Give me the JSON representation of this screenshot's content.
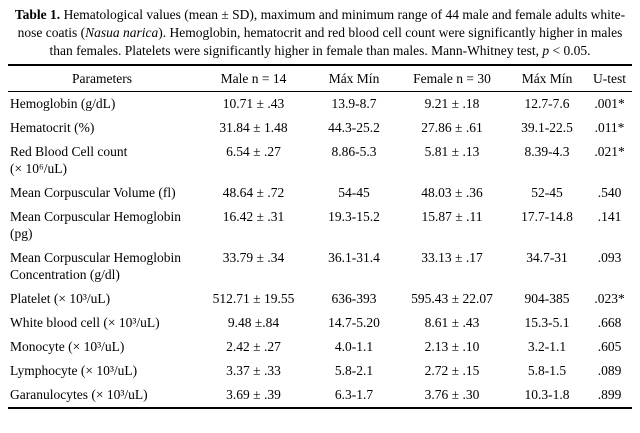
{
  "page": {
    "background_color": "#ffffff",
    "text_color": "#000000",
    "rule_color": "#000000"
  },
  "caption": {
    "label": "Table 1.",
    "part1": " Hematological values (mean ± SD), maximum and minimum range of 44 male and female adults white-nose coatis (",
    "species": "Nasua narica",
    "part2": "). Hemoglobin, hematocrit and red blood cell count were significantly higher in males than females. Platelets were significantly higher in female than males. Mann-Whitney test, ",
    "p_symbol": "p",
    "part3": " < 0.05."
  },
  "table": {
    "headers": [
      "Parameters",
      "Male n = 14",
      "Máx Mín",
      "Female n = 30",
      "Máx Mín",
      "U-test"
    ],
    "rows": [
      {
        "parameter": "Hemoglobin (g/dL)",
        "male_mean": "10.71 ± .43",
        "male_range": "13.9-8.7",
        "female_mean": "9.21 ± .18",
        "female_range": "12.7-7.6",
        "u_test": ".001*"
      },
      {
        "parameter": "Hematocrit (%)",
        "male_mean": "31.84 ± 1.48",
        "male_range": "44.3-25.2",
        "female_mean": "27.86 ± .61",
        "female_range": "39.1-22.5",
        "u_test": ".011*"
      },
      {
        "parameter": "Red Blood Cell count\n(× 10⁶/uL)",
        "male_mean": "6.54 ± .27",
        "male_range": "8.86-5.3",
        "female_mean": "5.81 ± .13",
        "female_range": "8.39-4.3",
        "u_test": ".021*"
      },
      {
        "parameter": "Mean Corpuscular Volume (fl)",
        "male_mean": "48.64 ± .72",
        "male_range": "54-45",
        "female_mean": "48.03 ± .36",
        "female_range": "52-45",
        "u_test": ".540"
      },
      {
        "parameter": "Mean Corpuscular Hemoglobin\n(pg)",
        "male_mean": "16.42 ± .31",
        "male_range": "19.3-15.2",
        "female_mean": "15.87 ± .11",
        "female_range": "17.7-14.8",
        "u_test": ".141"
      },
      {
        "parameter": "Mean Corpuscular Hemoglobin\nConcentration (g/dl)",
        "male_mean": "33.79 ± .34",
        "male_range": "36.1-31.4",
        "female_mean": "33.13 ± .17",
        "female_range": "34.7-31",
        "u_test": ".093"
      },
      {
        "parameter": "Platelet (× 10³/uL)",
        "male_mean": "512.71 ± 19.55",
        "male_range": "636-393",
        "female_mean": "595.43 ± 22.07",
        "female_range": "904-385",
        "u_test": ".023*"
      },
      {
        "parameter": "White blood cell (× 10³/uL)",
        "male_mean": "9.48 ±.84",
        "male_range": "14.7-5.20",
        "female_mean": "8.61 ± .43",
        "female_range": "15.3-5.1",
        "u_test": ".668"
      },
      {
        "parameter": "Monocyte (× 10³/uL)",
        "male_mean": "2.42 ± .27",
        "male_range": "4.0-1.1",
        "female_mean": "2.13 ± .10",
        "female_range": "3.2-1.1",
        "u_test": ".605"
      },
      {
        "parameter": "Lymphocyte (× 10³/uL)",
        "male_mean": "3.37 ± .33",
        "male_range": "5.8-2.1",
        "female_mean": "2.72 ± .15",
        "female_range": "5.8-1.5",
        "u_test": ".089"
      },
      {
        "parameter": "Garanulocytes (× 10³/uL)",
        "male_mean": "3.69 ± .39",
        "male_range": "6.3-1.7",
        "female_mean": "3.76 ± .30",
        "female_range": "10.3-1.8",
        "u_test": ".899"
      }
    ]
  }
}
